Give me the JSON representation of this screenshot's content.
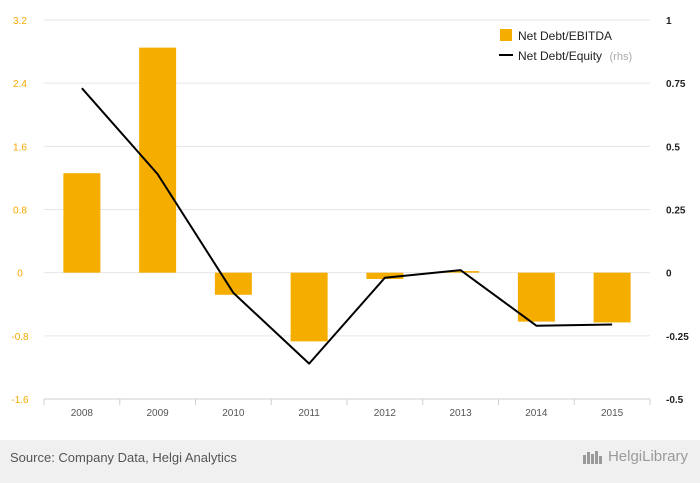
{
  "chart_data": {
    "type": "bar+line",
    "categories": [
      "2008",
      "2009",
      "2010",
      "2011",
      "2012",
      "2013",
      "2014",
      "2015"
    ],
    "series": [
      {
        "name": "Net Debt/EBITDA",
        "type": "bar",
        "axis": "left",
        "color": "#f5ad00",
        "values": [
          1.26,
          2.85,
          -0.28,
          -0.87,
          -0.08,
          0.02,
          -0.62,
          -0.63
        ]
      },
      {
        "name": "Net Debt/Equity",
        "type": "line",
        "axis": "right",
        "color": "#000000",
        "values": [
          0.73,
          0.39,
          -0.08,
          -0.36,
          -0.02,
          0.01,
          -0.21,
          -0.205
        ]
      }
    ],
    "y_left": {
      "ylim": [
        -1.6,
        3.2
      ],
      "ticks": [
        "3.2",
        "2.4",
        "1.6",
        "0.8",
        "0",
        "-0.8",
        "-1.6"
      ],
      "tick_values": [
        3.2,
        2.4,
        1.6,
        0.8,
        0,
        -0.8,
        -1.6
      ]
    },
    "y_right": {
      "ylim": [
        -0.5,
        1
      ],
      "ticks": [
        "1",
        "0.75",
        "0.5",
        "0.25",
        "0",
        "-0.25",
        "-0.5"
      ],
      "tick_values": [
        1,
        0.75,
        0.5,
        0.25,
        0,
        -0.25,
        -0.5
      ]
    },
    "legend": {
      "position": "top-right",
      "bar_label": "Net Debt/EBITDA",
      "line_label": "Net Debt/Equity",
      "line_note": "(rhs)"
    },
    "grid": true
  },
  "footer": {
    "source": "Source: Company Data, Helgi Analytics",
    "brand": "HelgiLibrary"
  }
}
